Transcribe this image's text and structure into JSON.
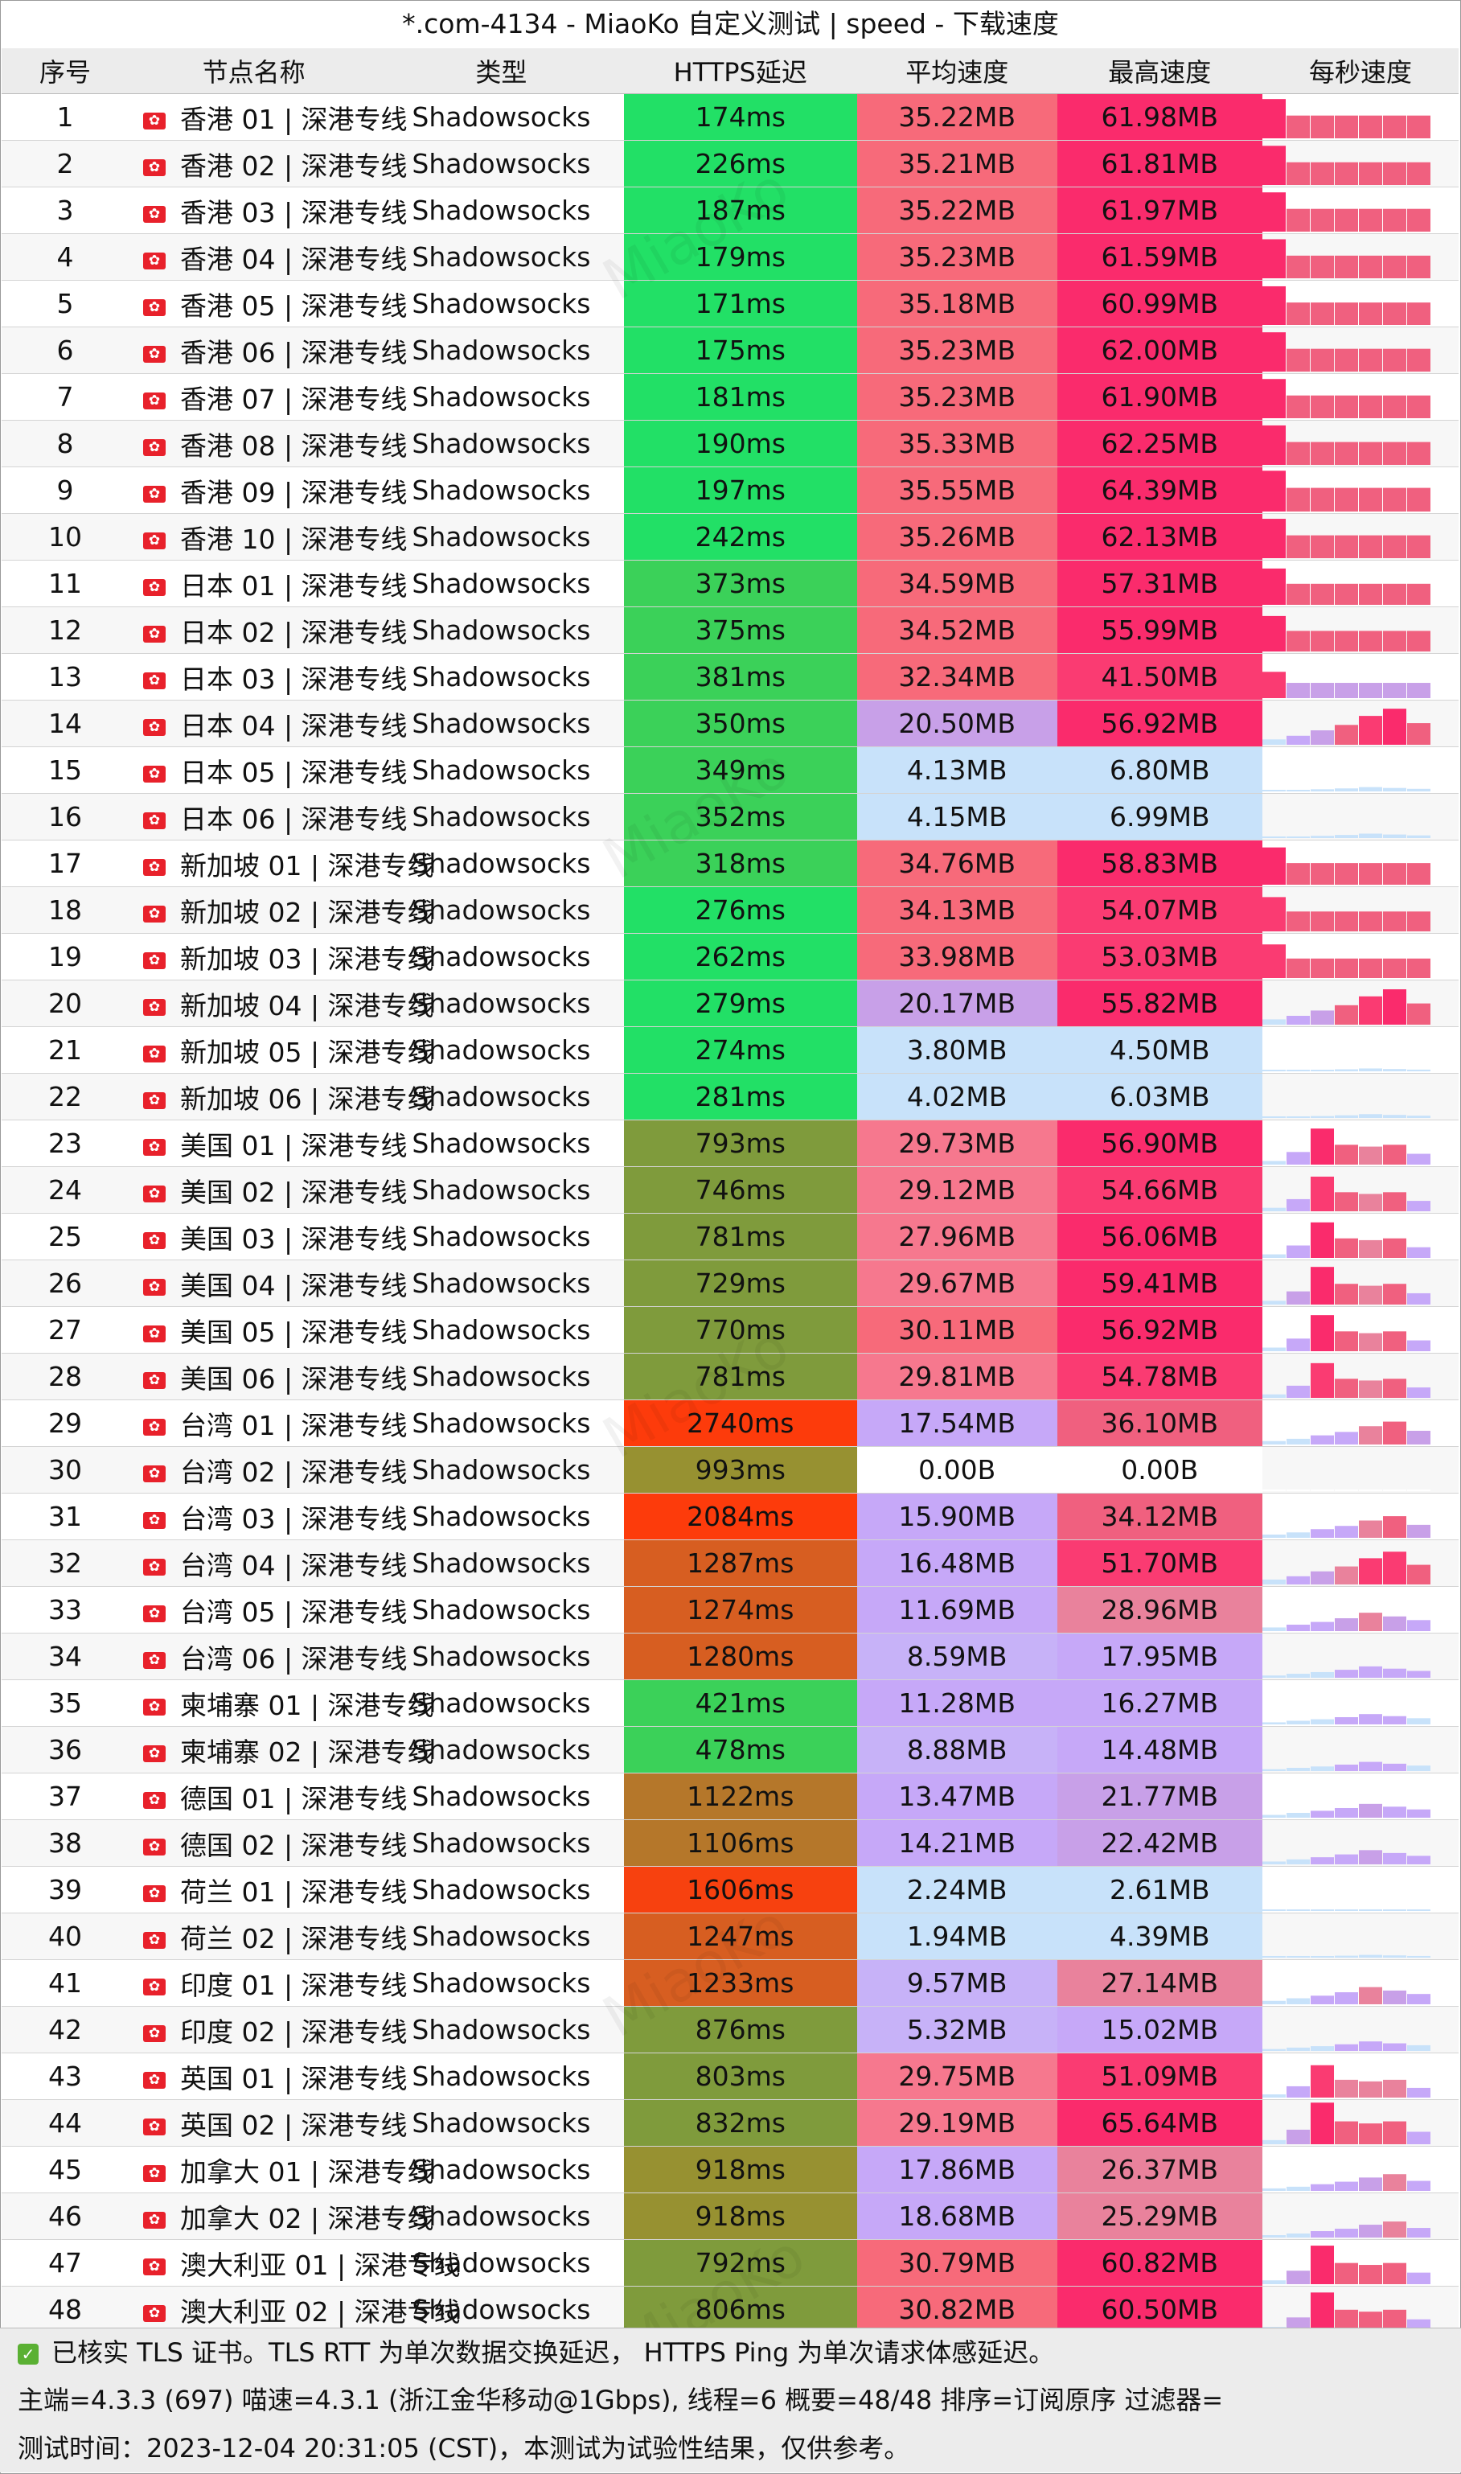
{
  "title": "*.com-4134 - MiaoKo 自定义测试 | speed - 下载速度",
  "watermark": "MiaoKo",
  "headers": {
    "idx": "序号",
    "name": "节点名称",
    "type": "类型",
    "latency": "HTTPS延迟",
    "avg": "平均速度",
    "max": "最高速度",
    "persec": "每秒速度"
  },
  "rows": [
    {
      "idx": "1",
      "name": "香港 01 | 深港专线",
      "type": "Shadowsocks",
      "latency": "174ms",
      "avg": "35.22MB",
      "max": "61.98MB"
    },
    {
      "idx": "2",
      "name": "香港 02 | 深港专线",
      "type": "Shadowsocks",
      "latency": "226ms",
      "avg": "35.21MB",
      "max": "61.81MB"
    },
    {
      "idx": "3",
      "name": "香港 03 | 深港专线",
      "type": "Shadowsocks",
      "latency": "187ms",
      "avg": "35.22MB",
      "max": "61.97MB"
    },
    {
      "idx": "4",
      "name": "香港 04 | 深港专线",
      "type": "Shadowsocks",
      "latency": "179ms",
      "avg": "35.23MB",
      "max": "61.59MB"
    },
    {
      "idx": "5",
      "name": "香港 05 | 深港专线",
      "type": "Shadowsocks",
      "latency": "171ms",
      "avg": "35.18MB",
      "max": "60.99MB"
    },
    {
      "idx": "6",
      "name": "香港 06 | 深港专线",
      "type": "Shadowsocks",
      "latency": "175ms",
      "avg": "35.23MB",
      "max": "62.00MB"
    },
    {
      "idx": "7",
      "name": "香港 07 | 深港专线",
      "type": "Shadowsocks",
      "latency": "181ms",
      "avg": "35.23MB",
      "max": "61.90MB"
    },
    {
      "idx": "8",
      "name": "香港 08 | 深港专线",
      "type": "Shadowsocks",
      "latency": "190ms",
      "avg": "35.33MB",
      "max": "62.25MB"
    },
    {
      "idx": "9",
      "name": "香港 09 | 深港专线",
      "type": "Shadowsocks",
      "latency": "197ms",
      "avg": "35.55MB",
      "max": "64.39MB"
    },
    {
      "idx": "10",
      "name": "香港 10 | 深港专线",
      "type": "Shadowsocks",
      "latency": "242ms",
      "avg": "35.26MB",
      "max": "62.13MB"
    },
    {
      "idx": "11",
      "name": "日本 01 | 深港专线",
      "type": "Shadowsocks",
      "latency": "373ms",
      "avg": "34.59MB",
      "max": "57.31MB"
    },
    {
      "idx": "12",
      "name": "日本 02 | 深港专线",
      "type": "Shadowsocks",
      "latency": "375ms",
      "avg": "34.52MB",
      "max": "55.99MB"
    },
    {
      "idx": "13",
      "name": "日本 03 | 深港专线",
      "type": "Shadowsocks",
      "latency": "381ms",
      "avg": "32.34MB",
      "max": "41.50MB"
    },
    {
      "idx": "14",
      "name": "日本 04 | 深港专线",
      "type": "Shadowsocks",
      "latency": "350ms",
      "avg": "20.50MB",
      "max": "56.92MB"
    },
    {
      "idx": "15",
      "name": "日本 05 | 深港专线",
      "type": "Shadowsocks",
      "latency": "349ms",
      "avg": "4.13MB",
      "max": "6.80MB"
    },
    {
      "idx": "16",
      "name": "日本 06 | 深港专线",
      "type": "Shadowsocks",
      "latency": "352ms",
      "avg": "4.15MB",
      "max": "6.99MB"
    },
    {
      "idx": "17",
      "name": "新加坡 01 | 深港专线",
      "type": "Shadowsocks",
      "latency": "318ms",
      "avg": "34.76MB",
      "max": "58.83MB"
    },
    {
      "idx": "18",
      "name": "新加坡 02 | 深港专线",
      "type": "Shadowsocks",
      "latency": "276ms",
      "avg": "34.13MB",
      "max": "54.07MB"
    },
    {
      "idx": "19",
      "name": "新加坡 03 | 深港专线",
      "type": "Shadowsocks",
      "latency": "262ms",
      "avg": "33.98MB",
      "max": "53.03MB"
    },
    {
      "idx": "20",
      "name": "新加坡 04 | 深港专线",
      "type": "Shadowsocks",
      "latency": "279ms",
      "avg": "20.17MB",
      "max": "55.82MB"
    },
    {
      "idx": "21",
      "name": "新加坡 05 | 深港专线",
      "type": "Shadowsocks",
      "latency": "274ms",
      "avg": "3.80MB",
      "max": "4.50MB"
    },
    {
      "idx": "22",
      "name": "新加坡 06 | 深港专线",
      "type": "Shadowsocks",
      "latency": "281ms",
      "avg": "4.02MB",
      "max": "6.03MB"
    },
    {
      "idx": "23",
      "name": "美国 01 | 深港专线",
      "type": "Shadowsocks",
      "latency": "793ms",
      "avg": "29.73MB",
      "max": "56.90MB"
    },
    {
      "idx": "24",
      "name": "美国 02 | 深港专线",
      "type": "Shadowsocks",
      "latency": "746ms",
      "avg": "29.12MB",
      "max": "54.66MB"
    },
    {
      "idx": "25",
      "name": "美国 03 | 深港专线",
      "type": "Shadowsocks",
      "latency": "781ms",
      "avg": "27.96MB",
      "max": "56.06MB"
    },
    {
      "idx": "26",
      "name": "美国 04 | 深港专线",
      "type": "Shadowsocks",
      "latency": "729ms",
      "avg": "29.67MB",
      "max": "59.41MB"
    },
    {
      "idx": "27",
      "name": "美国 05 | 深港专线",
      "type": "Shadowsocks",
      "latency": "770ms",
      "avg": "30.11MB",
      "max": "56.92MB"
    },
    {
      "idx": "28",
      "name": "美国 06 | 深港专线",
      "type": "Shadowsocks",
      "latency": "781ms",
      "avg": "29.81MB",
      "max": "54.78MB"
    },
    {
      "idx": "29",
      "name": "台湾 01 | 深港专线",
      "type": "Shadowsocks",
      "latency": "2740ms",
      "avg": "17.54MB",
      "max": "36.10MB"
    },
    {
      "idx": "30",
      "name": "台湾 02 | 深港专线",
      "type": "Shadowsocks",
      "latency": "993ms",
      "avg": "0.00B",
      "max": "0.00B"
    },
    {
      "idx": "31",
      "name": "台湾 03 | 深港专线",
      "type": "Shadowsocks",
      "latency": "2084ms",
      "avg": "15.90MB",
      "max": "34.12MB"
    },
    {
      "idx": "32",
      "name": "台湾 04 | 深港专线",
      "type": "Shadowsocks",
      "latency": "1287ms",
      "avg": "16.48MB",
      "max": "51.70MB"
    },
    {
      "idx": "33",
      "name": "台湾 05 | 深港专线",
      "type": "Shadowsocks",
      "latency": "1274ms",
      "avg": "11.69MB",
      "max": "28.96MB"
    },
    {
      "idx": "34",
      "name": "台湾 06 | 深港专线",
      "type": "Shadowsocks",
      "latency": "1280ms",
      "avg": "8.59MB",
      "max": "17.95MB"
    },
    {
      "idx": "35",
      "name": "柬埔寨 01 | 深港专线",
      "type": "Shadowsocks",
      "latency": "421ms",
      "avg": "11.28MB",
      "max": "16.27MB"
    },
    {
      "idx": "36",
      "name": "柬埔寨 02 | 深港专线",
      "type": "Shadowsocks",
      "latency": "478ms",
      "avg": "8.88MB",
      "max": "14.48MB"
    },
    {
      "idx": "37",
      "name": "德国 01 | 深港专线",
      "type": "Shadowsocks",
      "latency": "1122ms",
      "avg": "13.47MB",
      "max": "21.77MB"
    },
    {
      "idx": "38",
      "name": "德国 02 | 深港专线",
      "type": "Shadowsocks",
      "latency": "1106ms",
      "avg": "14.21MB",
      "max": "22.42MB"
    },
    {
      "idx": "39",
      "name": "荷兰 01 | 深港专线",
      "type": "Shadowsocks",
      "latency": "1606ms",
      "avg": "2.24MB",
      "max": "2.61MB"
    },
    {
      "idx": "40",
      "name": "荷兰 02 | 深港专线",
      "type": "Shadowsocks",
      "latency": "1247ms",
      "avg": "1.94MB",
      "max": "4.39MB"
    },
    {
      "idx": "41",
      "name": "印度 01 | 深港专线",
      "type": "Shadowsocks",
      "latency": "1233ms",
      "avg": "9.57MB",
      "max": "27.14MB"
    },
    {
      "idx": "42",
      "name": "印度 02 | 深港专线",
      "type": "Shadowsocks",
      "latency": "876ms",
      "avg": "5.32MB",
      "max": "15.02MB"
    },
    {
      "idx": "43",
      "name": "英国 01 | 深港专线",
      "type": "Shadowsocks",
      "latency": "803ms",
      "avg": "29.75MB",
      "max": "51.09MB"
    },
    {
      "idx": "44",
      "name": "英国 02 | 深港专线",
      "type": "Shadowsocks",
      "latency": "832ms",
      "avg": "29.19MB",
      "max": "65.64MB"
    },
    {
      "idx": "45",
      "name": "加拿大 01 | 深港专线",
      "type": "Shadowsocks",
      "latency": "918ms",
      "avg": "17.86MB",
      "max": "26.37MB"
    },
    {
      "idx": "46",
      "name": "加拿大 02 | 深港专线",
      "type": "Shadowsocks",
      "latency": "918ms",
      "avg": "18.68MB",
      "max": "25.29MB"
    },
    {
      "idx": "47",
      "name": "澳大利亚 01 | 深港专线",
      "type": "Shadowsocks",
      "latency": "792ms",
      "avg": "30.79MB",
      "max": "60.82MB"
    },
    {
      "idx": "48",
      "name": "澳大利亚 02 | 深港专线",
      "type": "Shadowsocks",
      "latency": "806ms",
      "avg": "30.82MB",
      "max": "60.50MB"
    }
  ],
  "footer": {
    "line1": "已核实 TLS 证书。TLS RTT 为单次数据交换延迟， HTTPS Ping 为单次请求体感延迟。",
    "line2": "主端=4.3.3 (697) 喵速=4.3.1 (浙江金华移动@1Gbps), 线程=6 概要=48/48 排序=订阅原序 过滤器=",
    "line3": "测试时间：2023-12-04 20:31:05 (CST)，本测试为试验性结果，仅供参考。"
  },
  "colors": {
    "latency_fast": "#22e066",
    "avg_high": "#f76a7a",
    "max_high": "#fa2b6c",
    "speed_low": "#c8e2fa",
    "speed_mid": "#c6a8f8"
  }
}
